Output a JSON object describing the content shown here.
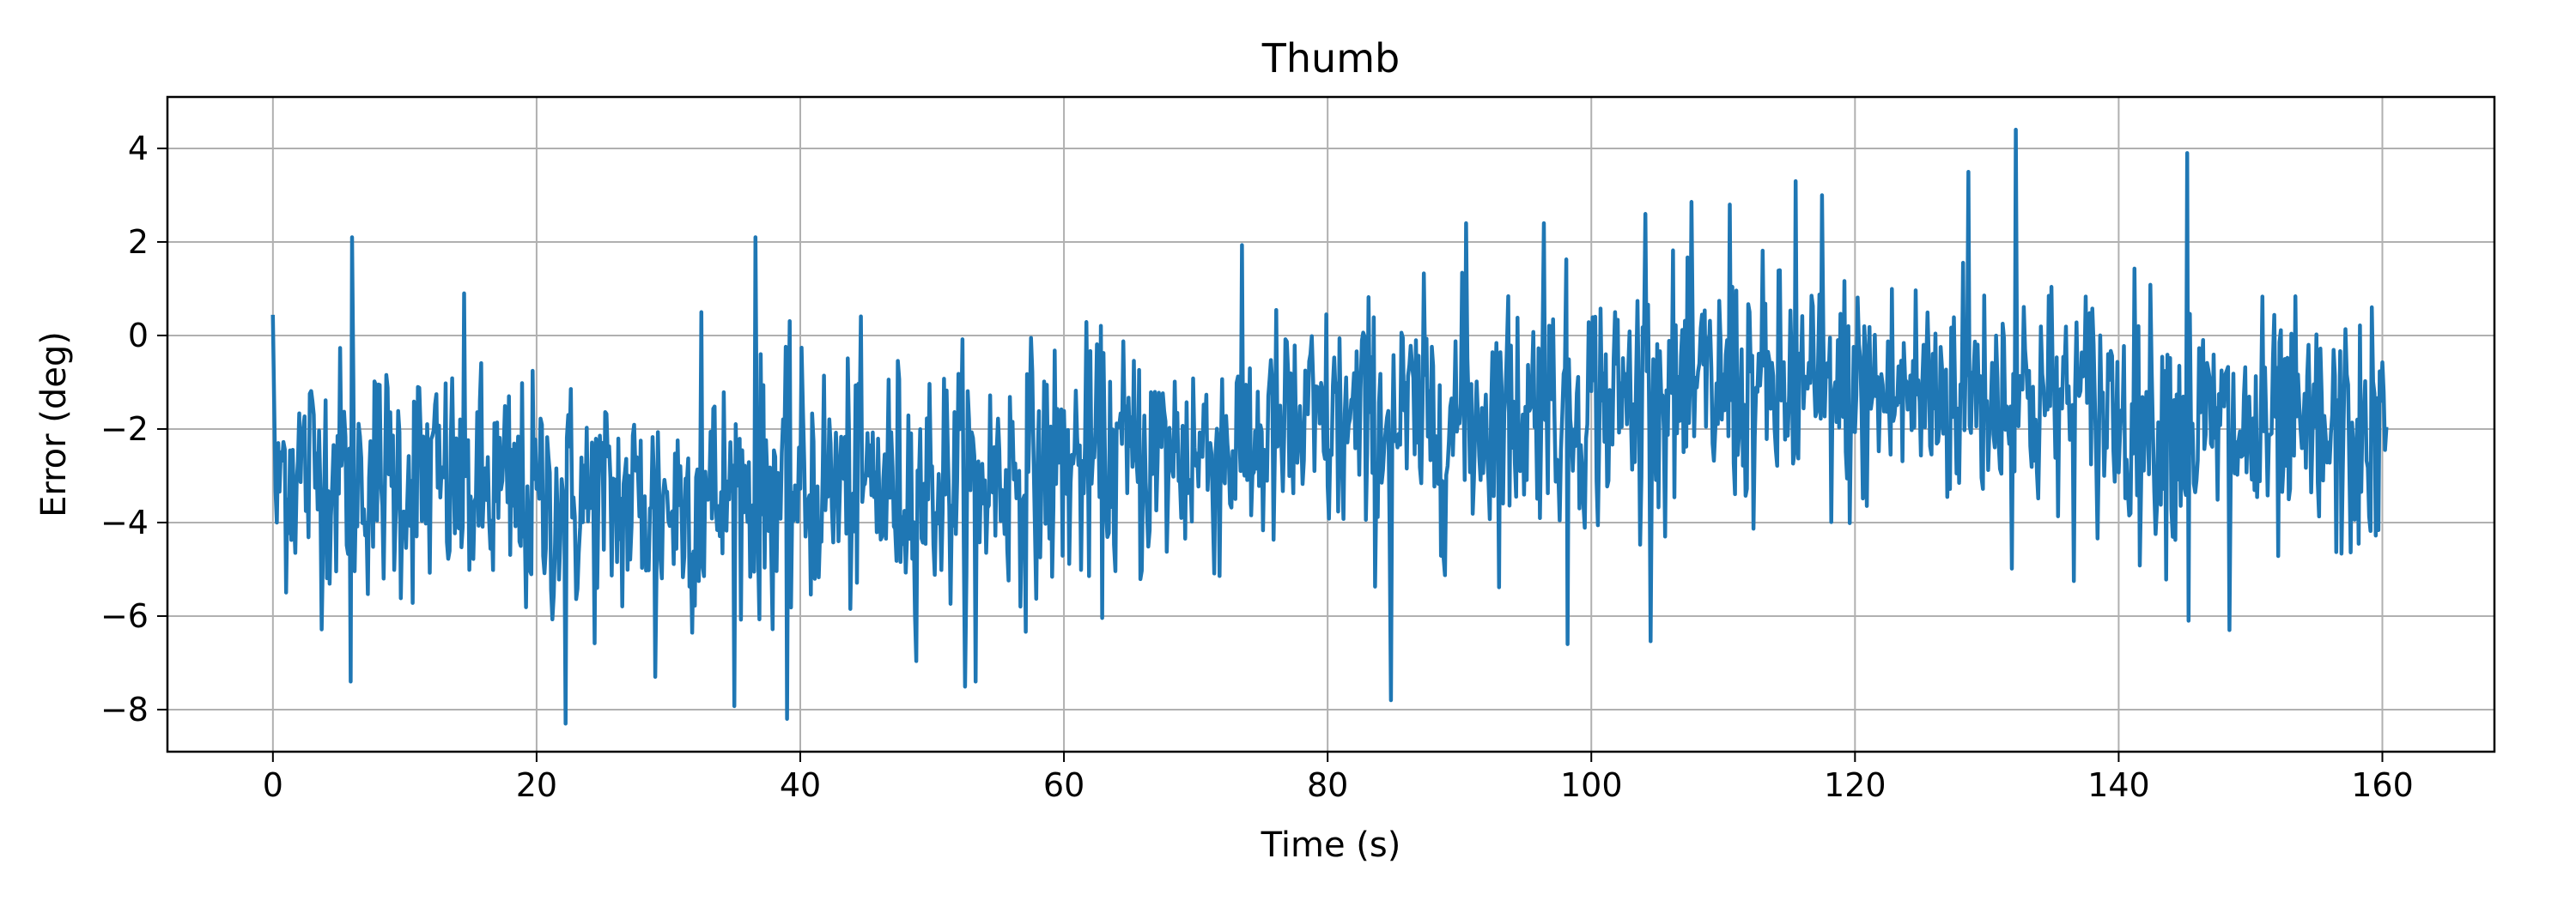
{
  "chart_data": {
    "type": "line",
    "title": "Thumb",
    "xlabel": "Time (s)",
    "ylabel": "Error (deg)",
    "xlim": [
      -8,
      168.5
    ],
    "ylim": [
      -8.9,
      5.1
    ],
    "xticks": [
      0,
      20,
      40,
      60,
      80,
      100,
      120,
      140,
      160
    ],
    "xtick_labels": [
      "0",
      "20",
      "40",
      "60",
      "80",
      "100",
      "120",
      "140",
      "160"
    ],
    "yticks": [
      -8,
      -6,
      -4,
      -2,
      0,
      2,
      4
    ],
    "ytick_labels": [
      "−8",
      "−6",
      "−4",
      "−2",
      "0",
      "2",
      "4"
    ],
    "grid": true,
    "legend": "none",
    "series": [
      {
        "color": "#1f77b4",
        "x_start": 0,
        "x_end": 160.3,
        "sample_interval": 0.1,
        "noise_amplitude_deg": 1.3,
        "trend": {
          "x": [
            0,
            10,
            20,
            30,
            40,
            50,
            60,
            70,
            80,
            90,
            100,
            110,
            120,
            130,
            140,
            150,
            160.3
          ],
          "y": [
            -2.8,
            -3.0,
            -3.6,
            -3.6,
            -3.2,
            -3.2,
            -2.8,
            -2.5,
            -2.0,
            -1.8,
            -1.4,
            -1.2,
            -1.3,
            -1.2,
            -1.6,
            -2.2,
            -2.3
          ]
        },
        "spikes": [
          {
            "x": 0.0,
            "y": 0.4
          },
          {
            "x": 0.3,
            "y": -4.0
          },
          {
            "x": 6.0,
            "y": 2.1
          },
          {
            "x": 5.9,
            "y": -7.4
          },
          {
            "x": 14.5,
            "y": 0.9
          },
          {
            "x": 22.2,
            "y": -8.3
          },
          {
            "x": 29.0,
            "y": -7.3
          },
          {
            "x": 32.5,
            "y": 0.5
          },
          {
            "x": 36.6,
            "y": 2.1
          },
          {
            "x": 39.0,
            "y": -8.2
          },
          {
            "x": 53.3,
            "y": -7.4
          },
          {
            "x": 84.8,
            "y": -7.8
          },
          {
            "x": 90.5,
            "y": 2.4
          },
          {
            "x": 96.4,
            "y": 2.4
          },
          {
            "x": 98.2,
            "y": -6.6
          },
          {
            "x": 104.1,
            "y": 2.6
          },
          {
            "x": 110.5,
            "y": 2.8
          },
          {
            "x": 115.5,
            "y": 3.3
          },
          {
            "x": 117.5,
            "y": 3.0
          },
          {
            "x": 128.6,
            "y": 3.5
          },
          {
            "x": 132.2,
            "y": 4.4
          },
          {
            "x": 145.2,
            "y": 3.9
          },
          {
            "x": 145.3,
            "y": -6.1
          },
          {
            "x": 148.4,
            "y": -6.3
          },
          {
            "x": 160.3,
            "y": -2.0
          }
        ]
      }
    ]
  }
}
